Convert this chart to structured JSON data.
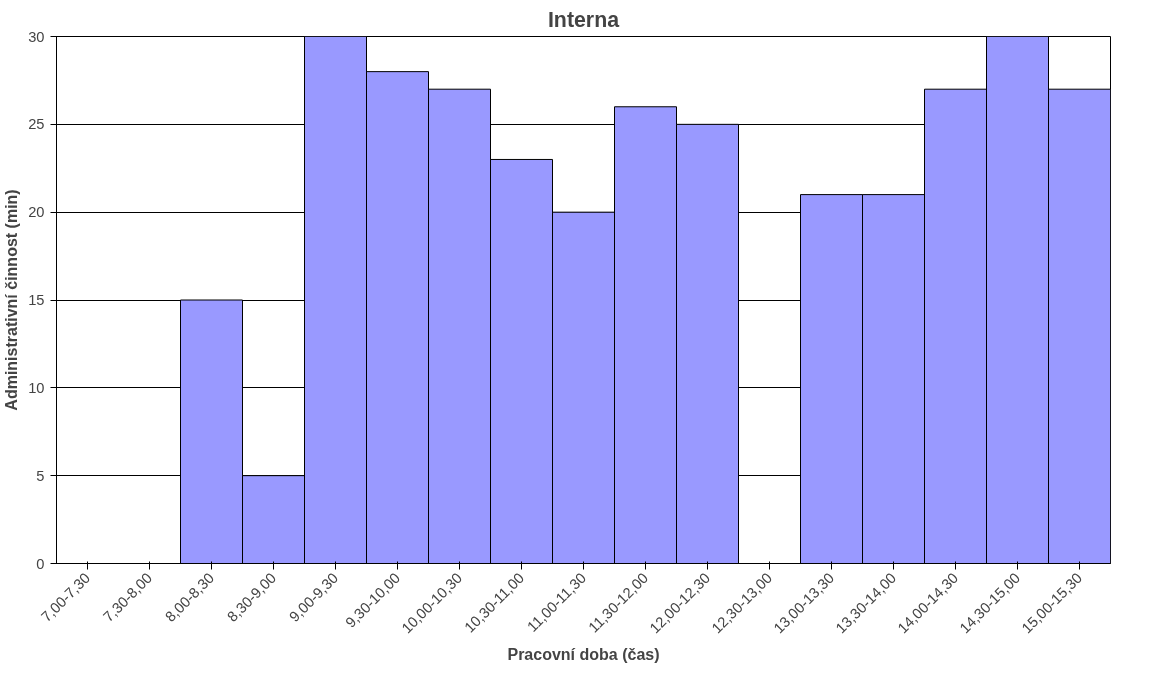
{
  "chart_data": {
    "type": "bar",
    "title": "Interna",
    "xlabel": "Pracovní doba (čas)",
    "ylabel": "Administrativní činnost (min)",
    "categories": [
      "7,00-7,30",
      "7,30-8,00",
      "8,00-8,30",
      "8,30-9,00",
      "9,00-9,30",
      "9,30-10,00",
      "10,00-10,30",
      "10,30-11,00",
      "11,00-11,30",
      "11,30-12,00",
      "12,00-12,30",
      "12,30-13,00",
      "13,00-13,30",
      "13,30-14,00",
      "14,00-14,30",
      "14,30-15,00",
      "15,00-15,30"
    ],
    "series": [
      {
        "color": "#9999ff",
        "values": [
          0,
          0,
          15,
          5,
          30,
          28,
          27,
          23,
          20,
          26,
          25,
          0,
          21,
          21,
          27,
          30,
          27
        ]
      }
    ],
    "ylim": [
      0,
      30
    ],
    "yticks": [
      0,
      5,
      10,
      15,
      20,
      25,
      30
    ],
    "grid": "y"
  }
}
